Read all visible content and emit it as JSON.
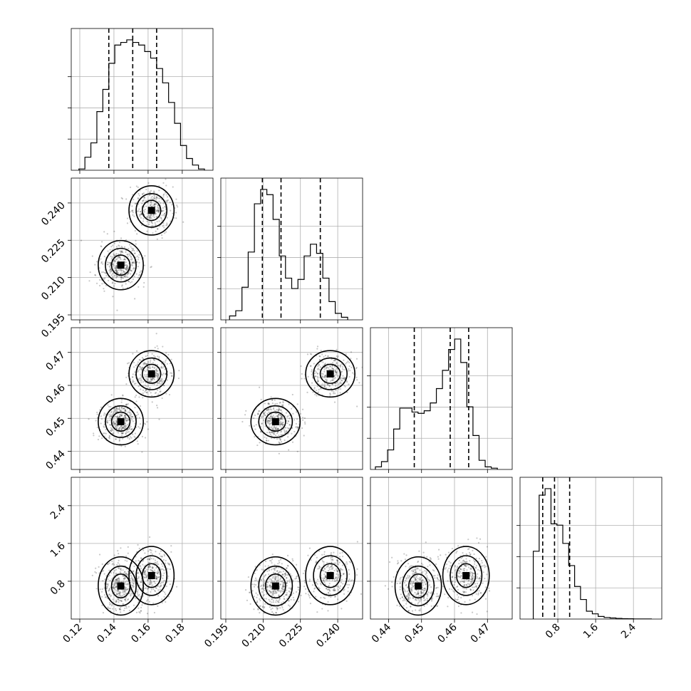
{
  "chart_data": {
    "type": "corner",
    "parameters": [
      {
        "ticks": [
          0.12,
          0.14,
          0.16,
          0.18
        ],
        "tick_labels": [
          "0.12",
          "0.14",
          "0.16",
          "0.18"
        ],
        "range": [
          0.115,
          0.198
        ]
      },
      {
        "ticks": [
          0.195,
          0.21,
          0.225,
          0.24
        ],
        "tick_labels": [
          "0.195",
          "0.210",
          "0.225",
          "0.240"
        ],
        "range": [
          0.193,
          0.25
        ]
      },
      {
        "ticks": [
          0.44,
          0.45,
          0.46,
          0.47
        ],
        "tick_labels": [
          "0.44",
          "0.45",
          "0.46",
          "0.47"
        ],
        "range": [
          0.4345,
          0.4775
        ]
      },
      {
        "ticks": [
          0.8,
          1.6,
          2.4
        ],
        "tick_labels": [
          "0.8",
          "1.6",
          "2.4"
        ],
        "range": [
          0.0,
          3.0
        ]
      }
    ],
    "diagonal_quantiles": [
      [
        0.137,
        0.151,
        0.165
      ],
      [
        0.2097,
        0.2172,
        0.233
      ],
      [
        0.4478,
        0.4587,
        0.4643
      ],
      [
        0.48,
        0.73,
        1.05
      ]
    ],
    "histograms": [
      {
        "bin_start": 0.1195,
        "bin_width": 0.0035,
        "heights": [
          0.01,
          0.1,
          0.21,
          0.45,
          0.62,
          0.82,
          0.96,
          0.98,
          1.0,
          0.98,
          0.96,
          0.91,
          0.86,
          0.78,
          0.67,
          0.52,
          0.36,
          0.19,
          0.09,
          0.04,
          0.01
        ]
      },
      {
        "bin_start": 0.1965,
        "bin_width": 0.0025,
        "heights": [
          0.03,
          0.07,
          0.25,
          0.52,
          0.89,
          1.0,
          0.96,
          0.77,
          0.49,
          0.32,
          0.24,
          0.31,
          0.49,
          0.58,
          0.51,
          0.32,
          0.14,
          0.05,
          0.02
        ]
      },
      {
        "bin_start": 0.436,
        "bin_width": 0.00185,
        "heights": [
          0.02,
          0.06,
          0.15,
          0.31,
          0.47,
          0.47,
          0.44,
          0.43,
          0.45,
          0.51,
          0.62,
          0.76,
          0.92,
          1.0,
          0.82,
          0.48,
          0.26,
          0.07,
          0.02,
          0.01
        ]
      },
      {
        "bin_start": 0.28,
        "bin_width": 0.125,
        "heights": [
          0.52,
          0.95,
          1.0,
          0.73,
          0.72,
          0.58,
          0.41,
          0.25,
          0.15,
          0.06,
          0.04,
          0.02,
          0.012,
          0.008,
          0.005,
          0.003,
          0.002,
          0.001,
          0.001,
          0.001
        ]
      }
    ],
    "modes": [
      [
        0.144,
        0.215,
        0.449,
        0.7
      ],
      [
        0.162,
        0.237,
        0.4635,
        0.92
      ]
    ],
    "grid": true
  }
}
